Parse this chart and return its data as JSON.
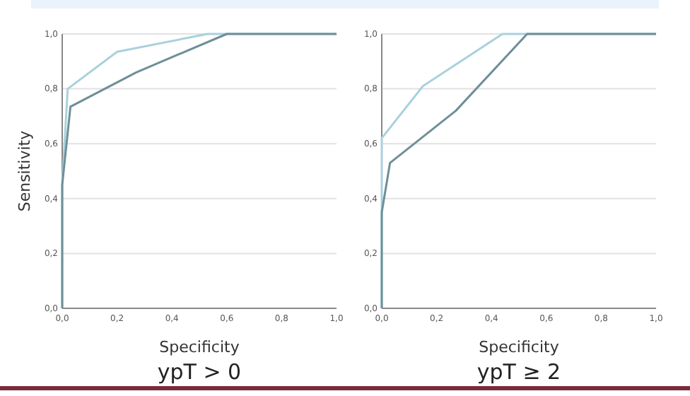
{
  "chart_data": [
    {
      "type": "line",
      "title": "ypT > 0",
      "xlabel": "Specificity",
      "ylabel": "Sensitivity",
      "xlim": [
        0,
        1
      ],
      "ylim": [
        0,
        1
      ],
      "xticks": [
        {
          "value": 0,
          "label": "0,0"
        },
        {
          "value": 0.2,
          "label": "0,2"
        },
        {
          "value": 0.4,
          "label": "0,4"
        },
        {
          "value": 0.6,
          "label": "0,6"
        },
        {
          "value": 0.8,
          "label": "0,8"
        },
        {
          "value": 1,
          "label": "1,0"
        }
      ],
      "yticks": [
        {
          "value": 0,
          "label": "0,0"
        },
        {
          "value": 0.2,
          "label": "0,2"
        },
        {
          "value": 0.4,
          "label": "0,4"
        },
        {
          "value": 0.6,
          "label": "0,6"
        },
        {
          "value": 0.8,
          "label": "0,8"
        },
        {
          "value": 1,
          "label": "1,0"
        }
      ],
      "grid": "y",
      "marker": "none",
      "series": [
        {
          "color": "#a9d1dd",
          "x": [
            0,
            0,
            0.02,
            0.2,
            0.53,
            1
          ],
          "values": [
            0,
            0.45,
            0.8,
            0.935,
            1,
            1
          ]
        },
        {
          "color": "#6e8f98",
          "x": [
            0,
            0,
            0.03,
            0.27,
            0.6,
            1
          ],
          "values": [
            0,
            0.45,
            0.735,
            0.86,
            1,
            1
          ]
        }
      ]
    },
    {
      "type": "line",
      "title": "ypT ≥ 2",
      "xlabel": "Specificity",
      "xlim": [
        0,
        1
      ],
      "ylim": [
        0,
        1
      ],
      "xticks": [
        {
          "value": 0,
          "label": "0,0"
        },
        {
          "value": 0.2,
          "label": "0,2"
        },
        {
          "value": 0.4,
          "label": "0,4"
        },
        {
          "value": 0.6,
          "label": "0,6"
        },
        {
          "value": 0.8,
          "label": "0,8"
        },
        {
          "value": 1,
          "label": "1,0"
        }
      ],
      "yticks": [
        {
          "value": 0,
          "label": "0,0"
        },
        {
          "value": 0.2,
          "label": "0,2"
        },
        {
          "value": 0.4,
          "label": "0,4"
        },
        {
          "value": 0.6,
          "label": "0,6"
        },
        {
          "value": 0.8,
          "label": "0,8"
        },
        {
          "value": 1,
          "label": "1,0"
        }
      ],
      "grid": "y",
      "marker": "none",
      "series": [
        {
          "color": "#a9d1dd",
          "x": [
            0,
            0,
            0.15,
            0.44,
            1
          ],
          "values": [
            0,
            0.62,
            0.81,
            1,
            1
          ]
        },
        {
          "color": "#6e8f98",
          "x": [
            0,
            0,
            0.03,
            0.27,
            0.53,
            1
          ],
          "values": [
            0,
            0.35,
            0.53,
            0.72,
            1,
            1
          ]
        }
      ]
    }
  ]
}
